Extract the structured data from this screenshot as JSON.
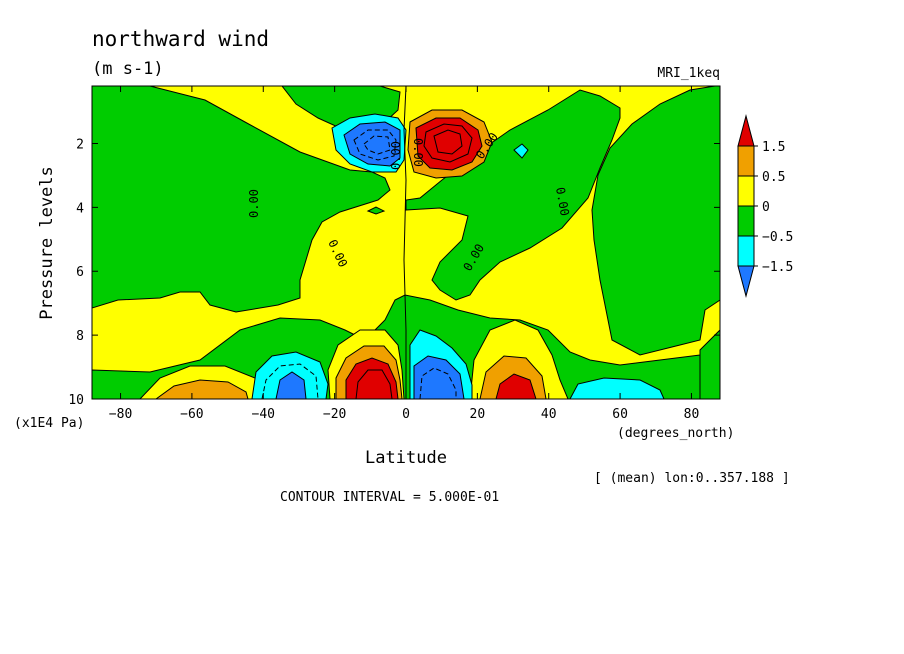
{
  "chart_data": {
    "type": "heatmap",
    "title": "northward wind",
    "units": "(m s-1)",
    "model": "MRI_1keq",
    "xlabel": "Latitude",
    "x_units": "(degrees_north)",
    "ylabel": "Pressure levels",
    "y_units": "(x1E4 Pa)",
    "xlim": [
      -88,
      88
    ],
    "ylim": [
      10,
      0.2
    ],
    "x_ticks": [
      -80,
      -60,
      -40,
      -20,
      0,
      20,
      40,
      60,
      80
    ],
    "x_tick_labels": [
      "−80",
      "−60",
      "−40",
      "−20",
      "0",
      "20",
      "40",
      "60",
      "80"
    ],
    "y_ticks": [
      2,
      4,
      6,
      8,
      10
    ],
    "y_tick_labels": [
      "2",
      "4",
      "6",
      "8",
      "10"
    ],
    "contour_interval_text": "CONTOUR INTERVAL = 5.000E-01",
    "mean_note": "[ (mean) lon:0..357.188 ]",
    "contour_labels": [
      "0.00",
      "0.00",
      "0.00",
      "0.00",
      "0.00",
      "0.00",
      "0.00"
    ],
    "colorbar": {
      "levels": [
        1.5,
        0.5,
        0,
        -0.5,
        -1.5
      ],
      "labels": [
        "1.5",
        "0.5",
        "0",
        "−0.5",
        "−1.5"
      ],
      "colors": [
        "#e00000",
        "#f0a000",
        "#ffff00",
        "#00cc00",
        "#00ffff",
        "#1e78ff"
      ]
    },
    "colors": {
      "strong_negative": "#1e78ff",
      "negative": "#00ffff",
      "weak_negative": "#00cc00",
      "weak_positive": "#ffff00",
      "positive": "#f0a000",
      "strong_positive": "#e00000"
    },
    "features": [
      {
        "lat": -9,
        "p": 2.0,
        "value": -2.5
      },
      {
        "lat": 7,
        "p": 2.0,
        "value": 3.0
      },
      {
        "lat": -8,
        "p": 9.5,
        "value": 2.5
      },
      {
        "lat": 10,
        "p": 9.5,
        "value": -2.5
      },
      {
        "lat": 32,
        "p": 9.5,
        "value": 2.0
      },
      {
        "lat": -34,
        "p": 9.6,
        "value": -1.8
      },
      {
        "lat": -58,
        "p": 9.8,
        "value": 1.0
      },
      {
        "lat": 57,
        "p": 9.8,
        "value": -0.8
      }
    ]
  }
}
